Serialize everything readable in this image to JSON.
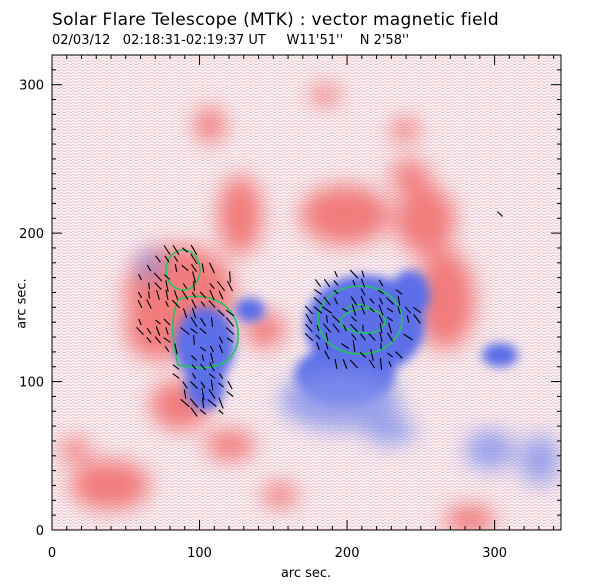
{
  "title": "Solar Flare Telescope (MTK) : vector magnetic field",
  "subtitle": {
    "date": "02/03/12",
    "time": "02:18:31-02:19:37 UT",
    "lon": "W11'51''",
    "lat": "N 2'58''"
  },
  "colors": {
    "positive": "#ef4444",
    "negative": "#3b5bdb",
    "contour": "#22c55e",
    "vector": "#000000"
  },
  "chart_data": {
    "type": "heatmap",
    "title": "Solar Flare Telescope (MTK) : vector magnetic field",
    "xlabel": "arc sec.",
    "ylabel": "arc sec.",
    "xlim": [
      0,
      345
    ],
    "ylim": [
      0,
      320
    ],
    "xticks": [
      0,
      100,
      200,
      300
    ],
    "yticks": [
      0,
      100,
      200,
      300
    ],
    "xtick_labels": [
      "0",
      "100",
      "200",
      "300"
    ],
    "ytick_labels": [
      "0",
      "100",
      "200",
      "300"
    ],
    "grid": false
  }
}
